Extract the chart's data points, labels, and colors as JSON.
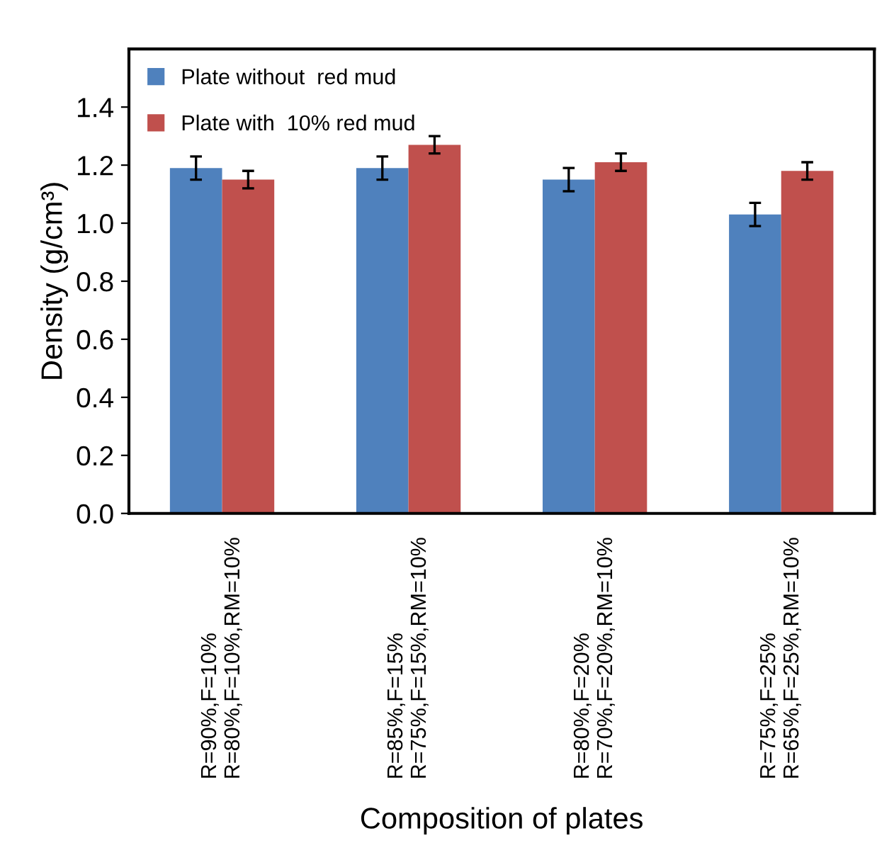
{
  "chart_data": {
    "type": "bar",
    "xlabel": "Composition of plates",
    "ylabel": "Density (g/cm³)",
    "categories": [
      "R=90%,F=10%\nR=80%,F=10%,RM=10%",
      "R=85%,F=15%\nR=75%,F=15%,RM=10%",
      "R=80%,F=20%\nR=70%,F=20%,RM=10%",
      "R=75%,F=25%\nR=65%,F=25%,RM=10%"
    ],
    "series": [
      {
        "name": "Plate without  red mud",
        "color": "#4f81bd",
        "values": [
          1.19,
          1.19,
          1.15,
          1.03
        ],
        "errors": [
          0.04,
          0.04,
          0.04,
          0.04
        ]
      },
      {
        "name": "Plate with  10% red mud",
        "color": "#c0504d",
        "values": [
          1.15,
          1.27,
          1.21,
          1.18
        ],
        "errors": [
          0.03,
          0.03,
          0.03,
          0.03
        ]
      }
    ],
    "ylim": [
      0,
      1.6
    ],
    "yticks": [
      {
        "value": 0,
        "label": "0.0"
      },
      0.2,
      0.4,
      0.6,
      0.8,
      {
        "value": 1,
        "label": "1.0"
      },
      1.2,
      1.4
    ],
    "grid": false,
    "legend": "top left"
  }
}
